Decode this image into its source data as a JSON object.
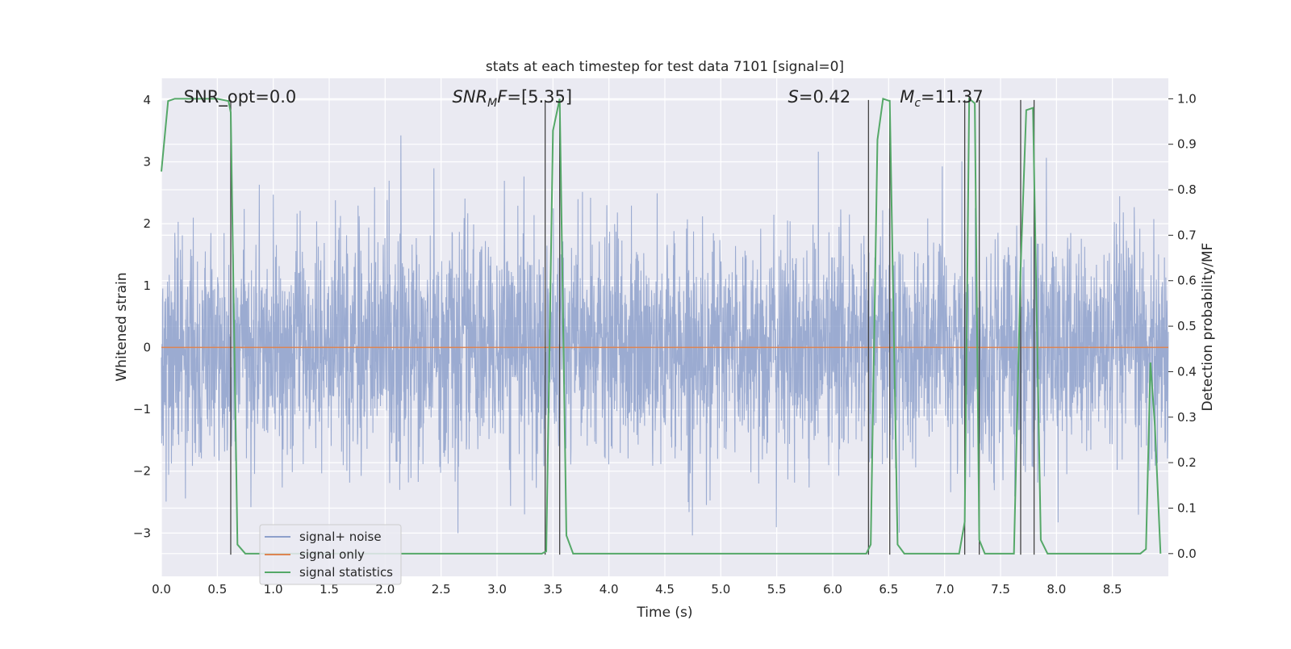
{
  "chart_data": {
    "type": "line",
    "title": "stats at each timestep for test data 7101 [signal=0]",
    "xlabel": "Time (s)",
    "ylabel": "Whitened strain",
    "y2label": "Detection probability/MF",
    "xlim": [
      0.0,
      9.0
    ],
    "ylim": [
      -3.7,
      4.35
    ],
    "y2lim": [
      -0.05,
      1.045
    ],
    "xticks": [
      0.0,
      0.5,
      1.0,
      1.5,
      2.0,
      2.5,
      3.0,
      3.5,
      4.0,
      4.5,
      5.0,
      5.5,
      6.0,
      6.5,
      7.0,
      7.5,
      8.0,
      8.5
    ],
    "xtick_labels": [
      "0.0",
      "0.5",
      "1.0",
      "1.5",
      "2.0",
      "2.5",
      "3.0",
      "3.5",
      "4.0",
      "4.5",
      "5.0",
      "5.5",
      "6.0",
      "6.5",
      "7.0",
      "7.5",
      "8.0",
      "8.5"
    ],
    "yticks": [
      4,
      3,
      2,
      1,
      0,
      -1,
      -2,
      -3
    ],
    "ytick_labels": [
      "4",
      "3",
      "2",
      "1",
      "0",
      "−1",
      "−2",
      "−3"
    ],
    "y2ticks": [
      1.0,
      0.9,
      0.8,
      0.7,
      0.6,
      0.5,
      0.4,
      0.3,
      0.2,
      0.1,
      0.0
    ],
    "y2tick_labels": [
      "1.0",
      "0.9",
      "0.8",
      "0.7",
      "0.6",
      "0.5",
      "0.4",
      "0.3",
      "0.2",
      "0.1",
      "0.0"
    ],
    "grid": true,
    "legend_position": "lower-left",
    "annotations": [
      {
        "text": "SNR_opt=0.0",
        "x": 0.2,
        "y": 4.05,
        "style": "plain"
      },
      {
        "text": "SNRₘF=[5.35]",
        "x": 2.6,
        "y": 4.05,
        "style": "math",
        "base": "SNR",
        "sub": "M",
        "rest": "F=[5.35]"
      },
      {
        "text": "S=0.42",
        "x": 5.6,
        "y": 4.05,
        "style": "math",
        "base": "S",
        "sub": "",
        "rest": "=0.42"
      },
      {
        "text": "Mₜ=11.37",
        "x": 6.6,
        "y": 4.05,
        "style": "math",
        "base": "M",
        "sub": "c",
        "rest": "=11.37"
      }
    ],
    "vlines_x": [
      0.62,
      3.43,
      3.56,
      6.32,
      6.51,
      7.18,
      7.31,
      7.68,
      7.8
    ],
    "vline_ymin": -3.35,
    "vline_ymax": 4.0,
    "series": [
      {
        "name": "signal+ noise",
        "color": "#8da0cb",
        "axis": "left",
        "kind": "noise",
        "duration_s": 9.0,
        "typical_range": [
          -2.0,
          2.0
        ],
        "peak_range": [
          -3.3,
          4.0
        ]
      },
      {
        "name": "signal only",
        "color": "#dd8452",
        "axis": "left",
        "x": [
          0.0,
          9.0
        ],
        "y": [
          0.0,
          0.0
        ]
      },
      {
        "name": "signal statistics",
        "color": "#55a868",
        "axis": "right",
        "x": [
          0.0,
          0.06,
          0.12,
          0.5,
          0.6,
          0.62,
          0.68,
          0.75,
          3.4,
          3.44,
          3.5,
          3.56,
          3.62,
          3.68,
          6.3,
          6.34,
          6.4,
          6.45,
          6.51,
          6.58,
          6.64,
          6.7,
          7.13,
          7.18,
          7.22,
          7.27,
          7.31,
          7.36,
          7.62,
          7.68,
          7.73,
          7.79,
          7.86,
          7.92,
          8.75,
          8.8,
          8.84,
          8.88,
          8.93
        ],
        "y": [
          0.84,
          0.995,
          1.0,
          1.0,
          0.995,
          0.97,
          0.02,
          0.0,
          0.0,
          0.005,
          0.93,
          1.0,
          0.04,
          0.0,
          0.0,
          0.02,
          0.91,
          1.0,
          0.995,
          0.02,
          0.0,
          0.0,
          0.0,
          0.07,
          1.0,
          0.99,
          0.03,
          0.0,
          0.0,
          0.63,
          0.975,
          0.98,
          0.03,
          0.0,
          0.0,
          0.01,
          0.42,
          0.28,
          0.0
        ]
      }
    ]
  }
}
